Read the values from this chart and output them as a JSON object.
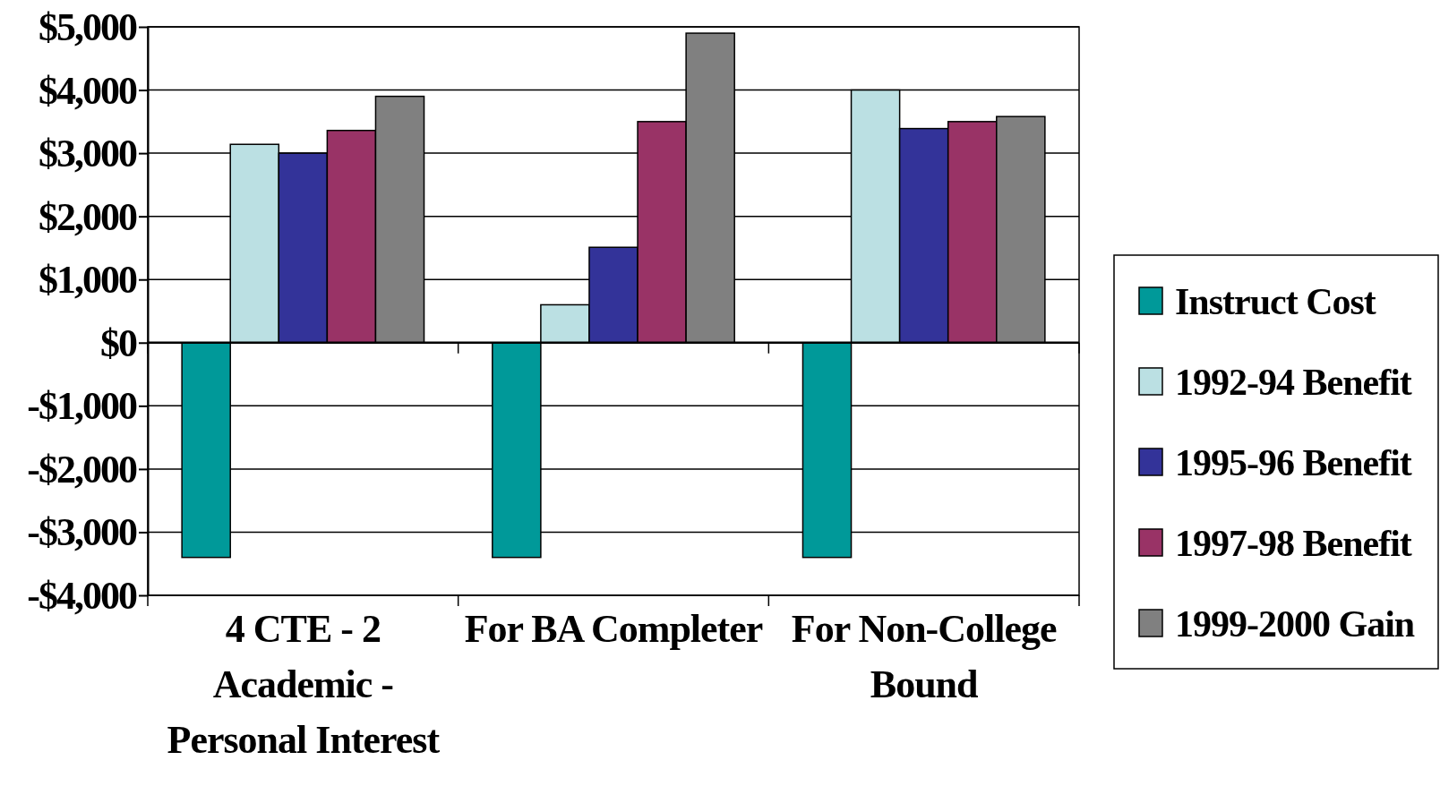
{
  "chart_data": {
    "type": "bar",
    "categories": [
      "4 CTE - 2 Academic  - Personal Interest",
      "For BA Completer",
      "For Non-College Bound"
    ],
    "series": [
      {
        "name": "Instruct Cost",
        "color": "#009999",
        "values": [
          -3400,
          -3400,
          -3400
        ]
      },
      {
        "name": "1992-94 Benefit",
        "color": "#bbe0e3",
        "values": [
          3140,
          600,
          4000
        ]
      },
      {
        "name": "1995-96 Benefit",
        "color": "#333399",
        "values": [
          3000,
          1510,
          3390
        ]
      },
      {
        "name": "1997-98 Benefit",
        "color": "#993366",
        "values": [
          3360,
          3500,
          3500
        ]
      },
      {
        "name": "1999-2000 Gain",
        "color": "#808080",
        "values": [
          3900,
          4900,
          3580
        ]
      }
    ],
    "ylim": [
      -4000,
      5000
    ],
    "yticks": [
      {
        "value": -4000,
        "label": "-$4,000"
      },
      {
        "value": -3000,
        "label": "-$3,000"
      },
      {
        "value": -2000,
        "label": "-$2,000"
      },
      {
        "value": -1000,
        "label": "-$1,000"
      },
      {
        "value": 0,
        "label": "$0"
      },
      {
        "value": 1000,
        "label": "$1,000"
      },
      {
        "value": 2000,
        "label": "$2,000"
      },
      {
        "value": 3000,
        "label": "$3,000"
      },
      {
        "value": 4000,
        "label": "$4,000"
      },
      {
        "value": 5000,
        "label": "$5,000"
      }
    ],
    "grid": "y",
    "legend": "right"
  }
}
